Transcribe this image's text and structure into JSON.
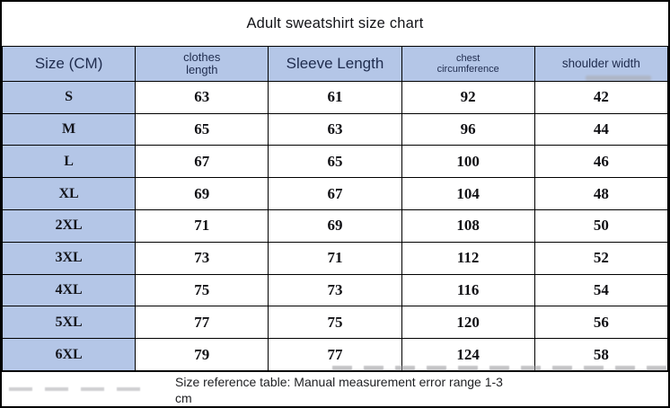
{
  "title": "Adult sweatshirt size chart",
  "colors": {
    "header_fill": "#b4c6e7",
    "border": "#000000",
    "header_text": "#1f2c4e"
  },
  "table": {
    "columns": [
      {
        "label": "Size (CM)"
      },
      {
        "label": "clothes\nlength"
      },
      {
        "label": "Sleeve Length"
      },
      {
        "label": "chest\ncircumference"
      },
      {
        "label": "shoulder width"
      }
    ],
    "rows": [
      {
        "size": "S",
        "values": [
          "63",
          "61",
          "92",
          "42"
        ]
      },
      {
        "size": "M",
        "values": [
          "65",
          "63",
          "96",
          "44"
        ]
      },
      {
        "size": "L",
        "values": [
          "67",
          "65",
          "100",
          "46"
        ]
      },
      {
        "size": "XL",
        "values": [
          "69",
          "67",
          "104",
          "48"
        ]
      },
      {
        "size": "2XL",
        "values": [
          "71",
          "69",
          "108",
          "50"
        ]
      },
      {
        "size": "3XL",
        "values": [
          "73",
          "71",
          "112",
          "52"
        ]
      },
      {
        "size": "4XL",
        "values": [
          "75",
          "73",
          "116",
          "54"
        ]
      },
      {
        "size": "5XL",
        "values": [
          "77",
          "75",
          "120",
          "56"
        ]
      },
      {
        "size": "6XL",
        "values": [
          "79",
          "77",
          "124",
          "58"
        ]
      }
    ]
  },
  "footer": {
    "note": "Size reference table: Manual measurement error range 1-3\ncm"
  }
}
